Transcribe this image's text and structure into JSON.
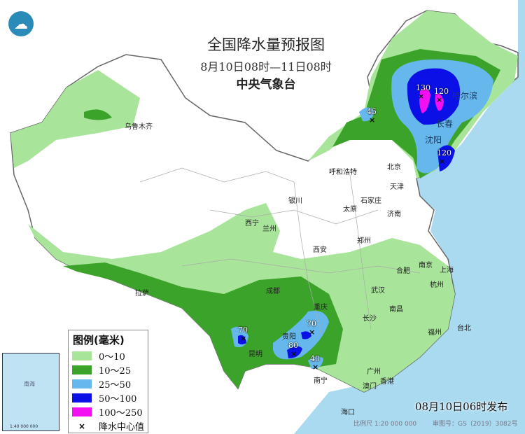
{
  "header": {
    "title": "全国降水量预报图",
    "period": "8月10日08时—11日08时",
    "issuer": "中央气象台",
    "logo_icon": "cma-logo"
  },
  "legend": {
    "title": "图例(毫米)",
    "items": [
      {
        "label": "0～10",
        "color": "#a8e49a"
      },
      {
        "label": "10～25",
        "color": "#3ca32a"
      },
      {
        "label": "25～50",
        "color": "#66b8ec"
      },
      {
        "label": "50～100",
        "color": "#0a10e6"
      },
      {
        "label": "100～250",
        "color": "#f20ff2"
      }
    ],
    "center_label": "降水中心值",
    "center_symbol": "×"
  },
  "centers": [
    "130",
    "120",
    "45",
    "120",
    "70",
    "70",
    "80",
    "40"
  ],
  "cities": [
    "乌鲁木齐",
    "呼和浩特",
    "北京",
    "天津",
    "石家庄",
    "太原",
    "银川",
    "济南",
    "西宁",
    "兰州",
    "西安",
    "郑州",
    "拉萨",
    "成都",
    "重庆",
    "武汉",
    "合肥",
    "南京",
    "上海",
    "杭州",
    "长沙",
    "南昌",
    "福州",
    "台北",
    "贵阳",
    "昆明",
    "南宁",
    "广州",
    "澳门",
    "香港",
    "海口",
    "哈尔滨",
    "长春",
    "沈阳"
  ],
  "inset": {
    "sea_label": "南海",
    "scale": "1:40 000 000"
  },
  "footer": {
    "published": "08月10日06时发布",
    "scale": "比例尺 1:20 000 000",
    "review_no": "审图号：GS（2019）3082号"
  }
}
